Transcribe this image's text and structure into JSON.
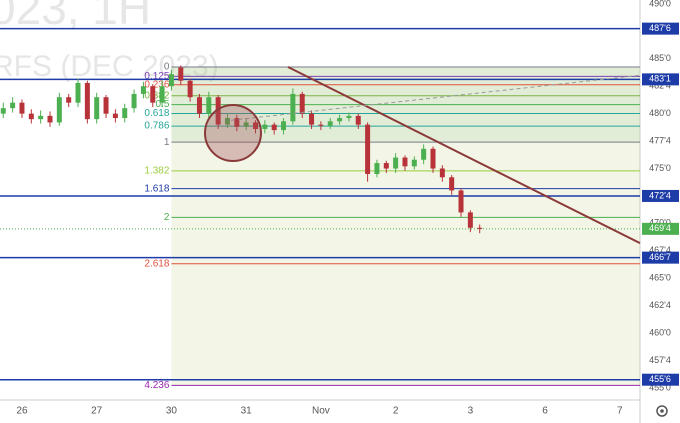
{
  "chart_data": {
    "type": "candlestick",
    "watermark": [
      "023, 1H",
      "RFS (DEC 2023)"
    ],
    "up_color": "#4caf50",
    "down_color": "#b8323a",
    "x": [
      -0.25,
      -0.125,
      0,
      0.125,
      0.25,
      0.375,
      0.5,
      0.625,
      0.75,
      0.875,
      1,
      1.125,
      1.25,
      1.375,
      1.5,
      1.625,
      1.75,
      1.875,
      2,
      2.125,
      2.25,
      2.375,
      2.5,
      2.625,
      2.75,
      2.875,
      3,
      3.125,
      3.25,
      3.375,
      3.5,
      3.625,
      3.75,
      3.875,
      4,
      4.125,
      4.25,
      4.375,
      4.5,
      4.625,
      4.75,
      4.875,
      5,
      5.125,
      5.25,
      5.375,
      5.5,
      5.625,
      5.75,
      5.875,
      6,
      6.125
    ],
    "open": [
      480.0,
      480.5,
      481.0,
      480.0,
      479.5,
      479.8,
      479.2,
      481.5,
      481.0,
      482.8,
      479.5,
      481.5,
      480.0,
      479.6,
      480.5,
      481.8,
      482.5,
      481.0,
      482.5,
      484.2,
      483.0,
      481.5,
      480.0,
      481.5,
      479.0,
      479.6,
      478.8,
      479.2,
      478.6,
      479.0,
      478.5,
      479.3,
      481.8,
      480.0,
      479.0,
      478.9,
      479.3,
      479.6,
      479.8,
      479.0,
      474.5,
      475.5,
      475.0,
      476.0,
      475.2,
      475.8,
      476.8,
      475.0,
      474.2,
      473.0,
      471.0,
      469.6
    ],
    "high": [
      481.0,
      481.5,
      481.3,
      480.4,
      480.3,
      480.2,
      481.9,
      481.8,
      483.2,
      483.0,
      481.9,
      481.7,
      480.4,
      480.9,
      482.2,
      482.9,
      482.7,
      483.0,
      484.0,
      484.4,
      483.2,
      481.8,
      482.0,
      481.7,
      480.0,
      479.9,
      479.6,
      479.4,
      479.4,
      479.2,
      479.6,
      482.3,
      482.0,
      480.3,
      479.3,
      479.6,
      479.9,
      480.1,
      480.0,
      479.2,
      475.8,
      475.7,
      476.4,
      476.2,
      476.1,
      477.2,
      477.0,
      475.3,
      474.4,
      473.2,
      471.2,
      469.9
    ],
    "low": [
      479.6,
      480.1,
      479.6,
      479.1,
      479.1,
      478.8,
      478.9,
      480.6,
      480.6,
      479.1,
      479.1,
      479.6,
      479.2,
      479.2,
      480.1,
      481.4,
      480.6,
      480.6,
      482.1,
      482.6,
      481.1,
      479.6,
      479.6,
      478.6,
      478.7,
      478.4,
      478.5,
      478.2,
      478.2,
      478.1,
      478.1,
      479.0,
      479.6,
      478.6,
      478.5,
      478.6,
      479.0,
      479.3,
      478.6,
      473.8,
      474.2,
      474.6,
      474.6,
      474.8,
      474.9,
      475.4,
      474.6,
      473.8,
      472.6,
      470.6,
      469.2,
      469.1
    ],
    "close": [
      480.5,
      481.0,
      480.0,
      479.5,
      479.8,
      479.2,
      481.5,
      481.0,
      482.8,
      479.5,
      481.5,
      480.0,
      479.6,
      480.5,
      481.8,
      482.5,
      481.0,
      482.5,
      483.6,
      483.0,
      481.5,
      480.0,
      481.5,
      479.0,
      479.6,
      478.8,
      479.2,
      478.6,
      479.0,
      478.5,
      479.3,
      481.8,
      480.0,
      479.0,
      478.9,
      479.3,
      479.6,
      479.8,
      479.0,
      474.5,
      475.5,
      475.0,
      476.0,
      475.2,
      475.8,
      476.8,
      475.0,
      474.2,
      473.0,
      471.0,
      469.6,
      469.5
    ],
    "xlim": [
      -0.294,
      8.27
    ],
    "xticks": [
      {
        "value": 0,
        "label": "26"
      },
      {
        "value": 1,
        "label": "27"
      },
      {
        "value": 2,
        "label": "30"
      },
      {
        "value": 3,
        "label": "31"
      },
      {
        "value": 4,
        "label": "Nov"
      },
      {
        "value": 5,
        "label": "2"
      },
      {
        "value": 6,
        "label": "3"
      },
      {
        "value": 7,
        "label": "6"
      },
      {
        "value": 8,
        "label": "7"
      }
    ],
    "ylim": [
      453.9,
      490.36
    ],
    "yticks": [
      {
        "value": 490,
        "label": "490'0"
      },
      {
        "value": 485,
        "label": "485'0"
      },
      {
        "value": 482.5,
        "label": "482'4"
      },
      {
        "value": 480,
        "label": "480'0"
      },
      {
        "value": 477.5,
        "label": "477'4"
      },
      {
        "value": 475,
        "label": "475'0"
      },
      {
        "value": 470,
        "label": "470'0"
      },
      {
        "value": 467.5,
        "label": "467'4"
      },
      {
        "value": 465,
        "label": "465'0"
      },
      {
        "value": 462.5,
        "label": "462'4"
      },
      {
        "value": 460,
        "label": "460'0"
      },
      {
        "value": 457.5,
        "label": "457'4"
      },
      {
        "value": 455,
        "label": "455'0"
      }
    ],
    "levels": [
      {
        "value": 487.75,
        "label": "487'6"
      },
      {
        "value": 483.125,
        "label": "483'1"
      },
      {
        "value": 472.5,
        "label": "472'4"
      },
      {
        "value": 466.875,
        "label": "466'7"
      },
      {
        "value": 455.75,
        "label": "455'6"
      }
    ],
    "level_color": "#1e3ca8",
    "last_price": {
      "value": 469.5,
      "label": "469'4"
    },
    "last_price_color": "#4caf50",
    "fib": {
      "start_x": 2,
      "price_0": 484.25,
      "price_1": 477.4,
      "levels": [
        0,
        0.125,
        0.236,
        0.382,
        0.5,
        0.618,
        0.786,
        1,
        1.382,
        1.618,
        2,
        2.618,
        4.236
      ],
      "colors": [
        "#787b86",
        "#7b3fb5",
        "#e0523d",
        "#7cb342",
        "#4caf50",
        "#26a69a",
        "#26a69a",
        "#787b86",
        "#9ccc3d",
        "#1e3ca8",
        "#4caf50",
        "#e0523d",
        "#9c27b0"
      ]
    },
    "trendlines": [
      {
        "x": [
          3.56,
          8.27
        ],
        "y": [
          484.25,
          468.2
        ],
        "color": "#8b3a3a",
        "dashed": false
      },
      {
        "x": [
          2.8,
          8.27
        ],
        "y": [
          479.4,
          483.5
        ],
        "color": "#9a9a9a",
        "dashed": true
      }
    ]
  }
}
